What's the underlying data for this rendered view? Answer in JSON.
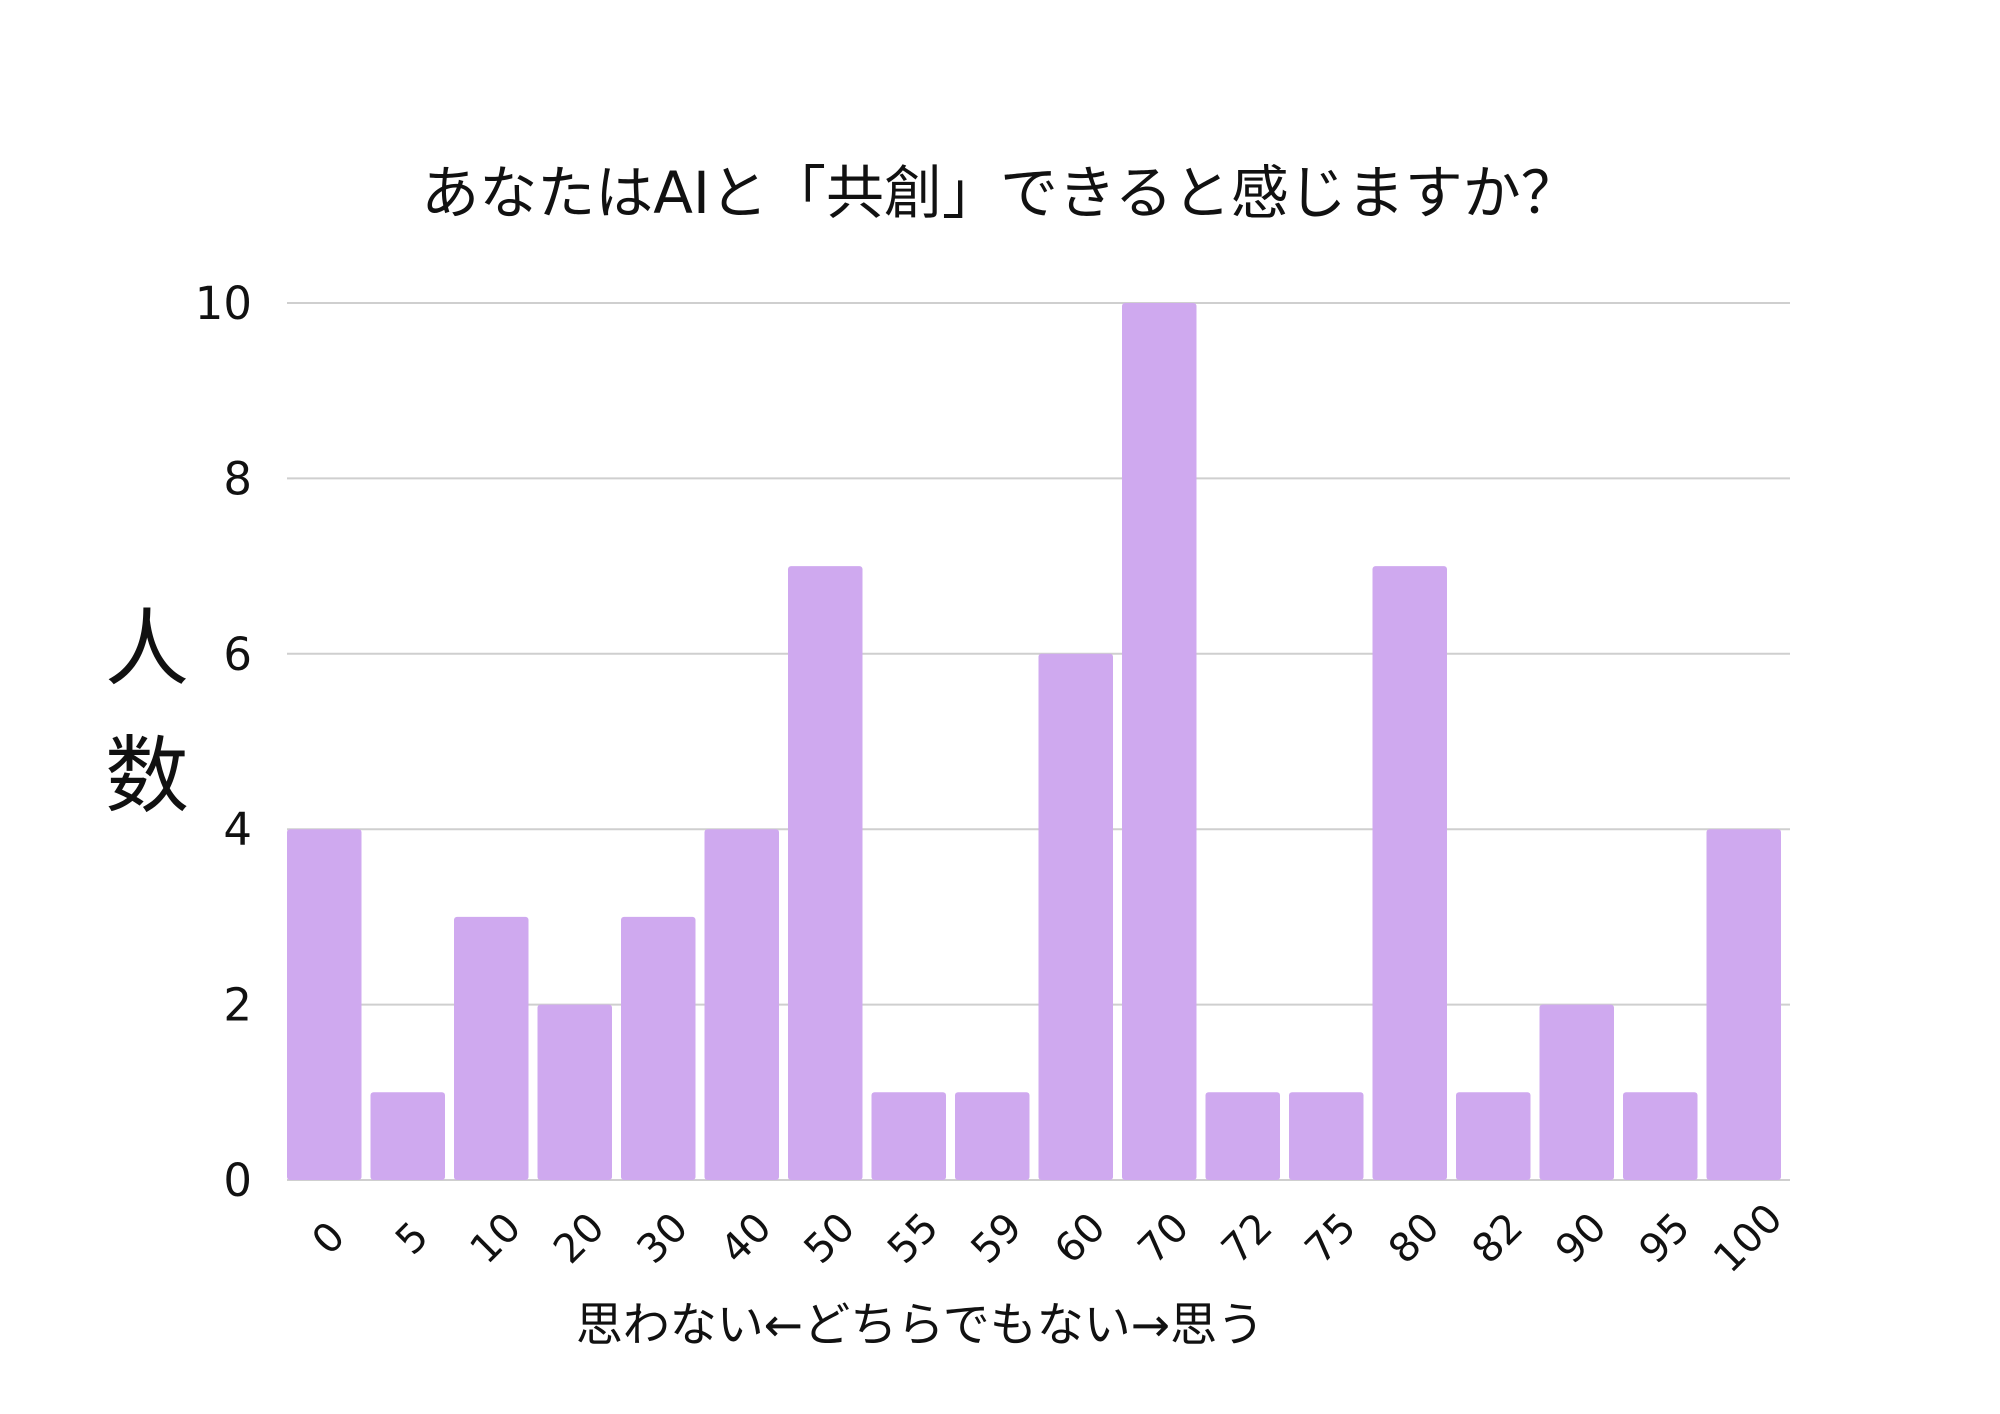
{
  "chart_data": {
    "type": "bar",
    "title": "あなたはAIと「共創」できると感じますか？",
    "xlabel": "思わない←どちらでもない→思う",
    "ylabel": "人数",
    "categories": [
      "0",
      "5",
      "10",
      "20",
      "30",
      "40",
      "50",
      "55",
      "59",
      "60",
      "70",
      "72",
      "75",
      "80",
      "82",
      "90",
      "95",
      "100"
    ],
    "series": [
      {
        "values": [
          4,
          1,
          3,
          2,
          3,
          4,
          7,
          1,
          1,
          6,
          10,
          1,
          1,
          7,
          1,
          2,
          1,
          4
        ],
        "color": "#cfa9ef"
      }
    ],
    "ylim": [
      0,
      10
    ],
    "yticks": [
      0,
      2,
      4,
      6,
      8,
      10
    ],
    "grid": true,
    "legend": "none"
  }
}
